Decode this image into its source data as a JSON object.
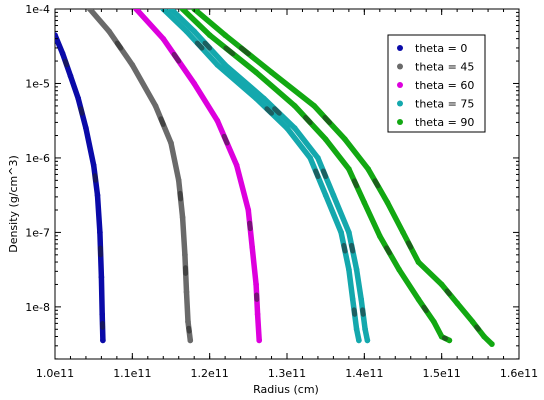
{
  "chart_data": {
    "type": "scatter",
    "xlabel": "Radius (cm)",
    "ylabel": "Density (g/cm^3)",
    "xlim": [
      100000000000.0,
      160000000000.0
    ],
    "ylim_log10": [
      -8.7,
      -4
    ],
    "yscale": "log",
    "x_tick_values": [
      100000000000.0,
      110000000000.0,
      120000000000.0,
      130000000000.0,
      140000000000.0,
      150000000000.0,
      160000000000.0
    ],
    "x_tick_labels": [
      "1.0e11",
      "1.1e11",
      "1.2e11",
      "1.3e11",
      "1.4e11",
      "1.5e11",
      "1.6e11"
    ],
    "y_tick_values": [
      1e-08,
      1e-07,
      1e-06,
      1e-05,
      0.0001
    ],
    "y_tick_labels": [
      "1e-8",
      "1e-7",
      "1e-6",
      "1e-5",
      "1e-4"
    ],
    "grid": false,
    "legend_position": "top-right",
    "series": [
      {
        "name": "theta = 0",
        "color": "#0a0aa8",
        "points": [
          [
            100000000000.0,
            -4.35
          ],
          [
            101000000000.0,
            -4.6
          ],
          [
            102000000000.0,
            -4.9
          ],
          [
            103000000000.0,
            -5.2
          ],
          [
            104000000000.0,
            -5.6
          ],
          [
            105000000000.0,
            -6.1
          ],
          [
            105500000000.0,
            -6.5
          ],
          [
            105800000000.0,
            -7.0
          ],
          [
            106000000000.0,
            -7.6
          ],
          [
            106100000000.0,
            -8.1
          ],
          [
            106200000000.0,
            -8.45
          ]
        ]
      },
      {
        "name": "theta = 45",
        "color": "#6a6a6a",
        "points": [
          [
            104500000000.0,
            -4.0
          ],
          [
            107000000000.0,
            -4.3
          ],
          [
            110000000000.0,
            -4.75
          ],
          [
            113000000000.0,
            -5.3
          ],
          [
            115000000000.0,
            -5.8
          ],
          [
            116000000000.0,
            -6.3
          ],
          [
            116500000000.0,
            -6.8
          ],
          [
            116800000000.0,
            -7.3
          ],
          [
            117000000000.0,
            -7.8
          ],
          [
            117200000000.0,
            -8.2
          ],
          [
            117500000000.0,
            -8.45
          ]
        ]
      },
      {
        "name": "theta = 60",
        "color": "#dd00dd",
        "points": [
          [
            110500000000.0,
            -4.0
          ],
          [
            114000000000.0,
            -4.4
          ],
          [
            118000000000.0,
            -5.0
          ],
          [
            121000000000.0,
            -5.5
          ],
          [
            123500000000.0,
            -6.1
          ],
          [
            125000000000.0,
            -6.7
          ],
          [
            125500000000.0,
            -7.2
          ],
          [
            126000000000.0,
            -7.7
          ],
          [
            126200000000.0,
            -8.1
          ],
          [
            126400000000.0,
            -8.45
          ]
        ]
      },
      {
        "name": "theta = 75",
        "color": "#14a8ad",
        "points": [
          [
            114000000000.0,
            -4.0
          ],
          [
            117000000000.0,
            -4.3
          ],
          [
            121000000000.0,
            -4.75
          ],
          [
            126000000000.0,
            -5.2
          ],
          [
            130000000000.0,
            -5.6
          ],
          [
            133000000000.0,
            -6.0
          ],
          [
            135000000000.0,
            -6.5
          ],
          [
            137000000000.0,
            -7.0
          ],
          [
            138000000000.0,
            -7.5
          ],
          [
            138500000000.0,
            -7.9
          ],
          [
            139000000000.0,
            -8.3
          ],
          [
            139300000000.0,
            -8.45
          ]
        ]
      },
      {
        "name": "theta = 75",
        "color": "#14a8ad",
        "points": [
          [
            115000000000.0,
            -4.0
          ],
          [
            118000000000.0,
            -4.3
          ],
          [
            122000000000.0,
            -4.75
          ],
          [
            127000000000.0,
            -5.2
          ],
          [
            131000000000.0,
            -5.6
          ],
          [
            134000000000.0,
            -6.0
          ],
          [
            136000000000.0,
            -6.5
          ],
          [
            138000000000.0,
            -7.0
          ],
          [
            139000000000.0,
            -7.5
          ],
          [
            139600000000.0,
            -7.9
          ],
          [
            140100000000.0,
            -8.3
          ],
          [
            140400000000.0,
            -8.45
          ]
        ]
      },
      {
        "name": "theta = 90",
        "color": "#12a812",
        "points": [
          [
            116500000000.0,
            -4.0
          ],
          [
            120000000000.0,
            -4.35
          ],
          [
            126000000000.0,
            -4.85
          ],
          [
            131000000000.0,
            -5.3
          ],
          [
            135000000000.0,
            -5.75
          ],
          [
            138000000000.0,
            -6.15
          ],
          [
            140000000000.0,
            -6.6
          ],
          [
            142000000000.0,
            -7.05
          ],
          [
            144500000000.0,
            -7.5
          ],
          [
            147000000000.0,
            -7.9
          ],
          [
            149000000000.0,
            -8.2
          ],
          [
            150000000000.0,
            -8.4
          ],
          [
            151000000000.0,
            -8.45
          ]
        ]
      },
      {
        "name": "theta = 90",
        "color": "#12a812",
        "points": [
          [
            118000000000.0,
            -4.0
          ],
          [
            122000000000.0,
            -4.35
          ],
          [
            128000000000.0,
            -4.85
          ],
          [
            133500000000.0,
            -5.3
          ],
          [
            137500000000.0,
            -5.75
          ],
          [
            140500000000.0,
            -6.15
          ],
          [
            143000000000.0,
            -6.6
          ],
          [
            145000000000.0,
            -7.0
          ],
          [
            147000000000.0,
            -7.4
          ],
          [
            150000000000.0,
            -7.7
          ],
          [
            152000000000.0,
            -7.95
          ],
          [
            154000000000.0,
            -8.2
          ],
          [
            155500000000.0,
            -8.4
          ],
          [
            156500000000.0,
            -8.5
          ]
        ]
      }
    ],
    "legend_entries": [
      "theta = 0",
      "theta = 45",
      "theta = 60",
      "theta = 75",
      "theta = 90"
    ],
    "legend_colors": [
      "#0a0aa8",
      "#6a6a6a",
      "#dd00dd",
      "#14a8ad",
      "#12a812"
    ]
  }
}
